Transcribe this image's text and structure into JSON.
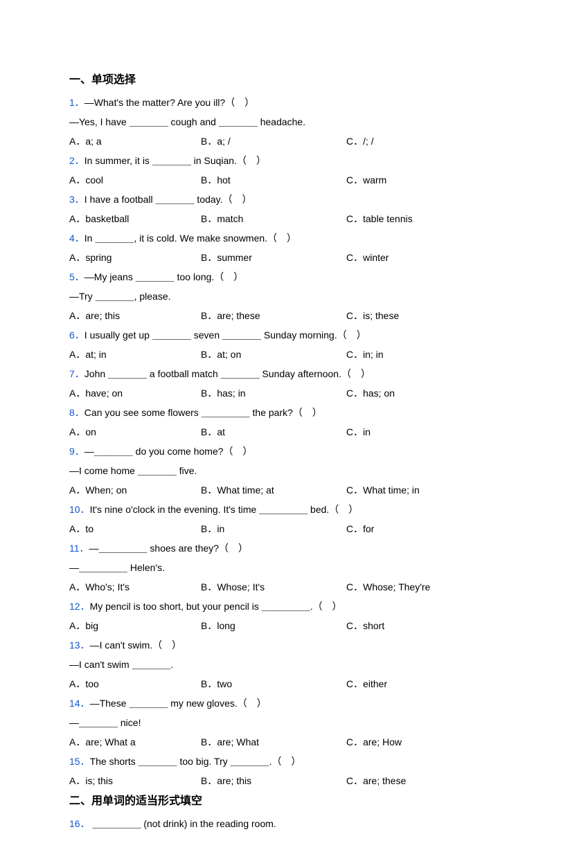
{
  "section1_title": "一、单项选择",
  "section2_title": "二、用单词的适当形式填空",
  "questions": [
    {
      "num": "1．",
      "lines": [
        "—What's the matter? Are you ill?（　）",
        "—Yes, I have ＿＿＿＿ cough and ＿＿＿＿ headache."
      ],
      "opts": [
        "A．a; a",
        "B．a; /",
        "C．/; /"
      ]
    },
    {
      "num": "2．",
      "lines": [
        "In summer, it is ＿＿＿＿ in Suqian.（　）"
      ],
      "opts": [
        "A．cool",
        "B．hot",
        "C．warm"
      ]
    },
    {
      "num": "3．",
      "lines": [
        "I have a football ＿＿＿＿ today.（　）"
      ],
      "opts": [
        "A．basketball",
        "B．match",
        "C．table tennis"
      ]
    },
    {
      "num": "4．",
      "lines": [
        "In ＿＿＿＿, it is cold. We make snowmen.（　）"
      ],
      "opts": [
        "A．spring",
        "B．summer",
        "C．winter"
      ]
    },
    {
      "num": "5．",
      "lines": [
        "—My jeans ＿＿＿＿ too long.（　）",
        "—Try ＿＿＿＿, please."
      ],
      "opts": [
        "A．are; this",
        "B．are; these",
        "C．is; these"
      ]
    },
    {
      "num": "6．",
      "lines": [
        "I usually get up ＿＿＿＿ seven ＿＿＿＿ Sunday morning.（　）"
      ],
      "opts": [
        "A．at; in",
        "B．at; on",
        "C．in; in"
      ]
    },
    {
      "num": "7．",
      "lines": [
        "John ＿＿＿＿ a football match ＿＿＿＿ Sunday afternoon.（　）"
      ],
      "opts": [
        "A．have; on",
        "B．has; in",
        "C．has; on"
      ]
    },
    {
      "num": "8．",
      "lines": [
        "Can you see some flowers ＿＿＿＿＿ the park?（　）"
      ],
      "opts": [
        "A．on",
        "B．at",
        "C．in"
      ]
    },
    {
      "num": "9．",
      "lines": [
        "—＿＿＿＿ do you come home?（　）",
        "—I come home ＿＿＿＿ five."
      ],
      "opts": [
        "A．When; on",
        "B．What time; at",
        "C．What time; in"
      ]
    },
    {
      "num": "10．",
      "lines": [
        "It's nine o'clock in the evening. It's time ＿＿＿＿＿ bed.（　）"
      ],
      "opts": [
        "A．to",
        "B．in",
        "C．for"
      ]
    },
    {
      "num": "11．",
      "lines": [
        "—＿＿＿＿＿ shoes are they?（　）",
        "—＿＿＿＿＿ Helen's."
      ],
      "opts": [
        "A．Who's; It's",
        "B．Whose; It's",
        "C．Whose; They're"
      ]
    },
    {
      "num": "12．",
      "lines": [
        "My pencil is too short, but your pencil is ＿＿＿＿＿.（　）"
      ],
      "opts": [
        "A．big",
        "B．long",
        "C．short"
      ]
    },
    {
      "num": "13．",
      "lines": [
        "—I can't swim.（　）",
        "—I can't swim ＿＿＿＿."
      ],
      "opts": [
        "A．too",
        "B．two",
        "C．either"
      ]
    },
    {
      "num": "14．",
      "lines": [
        "—These ＿＿＿＿ my new gloves.（　）",
        "—＿＿＿＿ nice!"
      ],
      "opts": [
        "A．are; What a",
        "B．are; What",
        "C．are; How"
      ]
    },
    {
      "num": "15．",
      "lines": [
        "The shorts ＿＿＿＿ too big. Try ＿＿＿＿.（　）"
      ],
      "opts": [
        "A．is; this",
        "B．are; this",
        "C．are; these"
      ]
    }
  ],
  "q16": {
    "num": "16．",
    "text": "＿＿＿＿＿ (not drink) in the reading room."
  }
}
